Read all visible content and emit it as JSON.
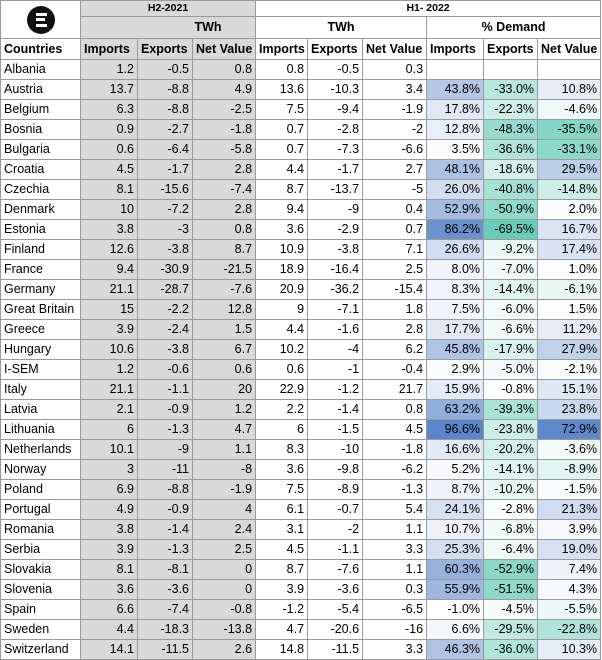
{
  "header": {
    "period_1": "H2-2021",
    "period_2": "H1- 2022",
    "unit_1": "TWh",
    "unit_2": "TWh",
    "unit_3": "% Demand",
    "col_country": "Countries",
    "col_imports": "Imports",
    "col_exports": "Exports",
    "col_net": "Net Value"
  },
  "colors": {
    "gray_fill": "#d9d9d9",
    "blue_heat": "#5b86c9",
    "teal_heat": "#2fb99e"
  },
  "rows": [
    {
      "country": "Albania",
      "h2": [
        "1.2",
        "-0.5",
        "0.8"
      ],
      "h1": [
        "0.8",
        "-0.5",
        "0.3"
      ],
      "pct": [
        "",
        "",
        ""
      ],
      "pv": [
        null,
        null,
        null
      ]
    },
    {
      "country": "Austria",
      "h2": [
        "13.7",
        "-8.8",
        "4.9"
      ],
      "h1": [
        "13.6",
        "-10.3",
        "3.4"
      ],
      "pct": [
        "43.8%",
        "-33.0%",
        "10.8%"
      ],
      "pv": [
        43.8,
        -33.0,
        10.8
      ]
    },
    {
      "country": "Belgium",
      "h2": [
        "6.3",
        "-8.8",
        "-2.5"
      ],
      "h1": [
        "7.5",
        "-9.4",
        "-1.9"
      ],
      "pct": [
        "17.8%",
        "-22.3%",
        "-4.6%"
      ],
      "pv": [
        17.8,
        -22.3,
        -4.6
      ]
    },
    {
      "country": "Bosnia",
      "h2": [
        "0.9",
        "-2.7",
        "-1.8"
      ],
      "h1": [
        "0.7",
        "-2.8",
        "-2"
      ],
      "pct": [
        "12.8%",
        "-48.3%",
        "-35.5%"
      ],
      "pv": [
        12.8,
        -48.3,
        -35.5
      ]
    },
    {
      "country": "Bulgaria",
      "h2": [
        "0.6",
        "-6.4",
        "-5.8"
      ],
      "h1": [
        "0.7",
        "-7.3",
        "-6.6"
      ],
      "pct": [
        "3.5%",
        "-36.6%",
        "-33.1%"
      ],
      "pv": [
        3.5,
        -36.6,
        -33.1
      ]
    },
    {
      "country": "Croatia",
      "h2": [
        "4.5",
        "-1.7",
        "2.8"
      ],
      "h1": [
        "4.4",
        "-1.7",
        "2.7"
      ],
      "pct": [
        "48.1%",
        "-18.6%",
        "29.5%"
      ],
      "pv": [
        48.1,
        -18.6,
        29.5
      ]
    },
    {
      "country": "Czechia",
      "h2": [
        "8.1",
        "-15.6",
        "-7.4"
      ],
      "h1": [
        "8.7",
        "-13.7",
        "-5"
      ],
      "pct": [
        "26.0%",
        "-40.8%",
        "-14.8%"
      ],
      "pv": [
        26.0,
        -40.8,
        -14.8
      ]
    },
    {
      "country": "Denmark",
      "h2": [
        "10",
        "-7.2",
        "2.8"
      ],
      "h1": [
        "9.4",
        "-9",
        "0.4"
      ],
      "pct": [
        "52.9%",
        "-50.9%",
        "2.0%"
      ],
      "pv": [
        52.9,
        -50.9,
        2.0
      ]
    },
    {
      "country": "Estonia",
      "h2": [
        "3.8",
        "-3",
        "0.8"
      ],
      "h1": [
        "3.6",
        "-2.9",
        "0.7"
      ],
      "pct": [
        "86.2%",
        "-69.5%",
        "16.7%"
      ],
      "pv": [
        86.2,
        -69.5,
        16.7
      ]
    },
    {
      "country": "Finland",
      "h2": [
        "12.6",
        "-3.8",
        "8.7"
      ],
      "h1": [
        "10.9",
        "-3.8",
        "7.1"
      ],
      "pct": [
        "26.6%",
        "-9.2%",
        "17.4%"
      ],
      "pv": [
        26.6,
        -9.2,
        17.4
      ]
    },
    {
      "country": "France",
      "h2": [
        "9.4",
        "-30.9",
        "-21.5"
      ],
      "h1": [
        "18.9",
        "-16.4",
        "2.5"
      ],
      "pct": [
        "8.0%",
        "-7.0%",
        "1.0%"
      ],
      "pv": [
        8.0,
        -7.0,
        1.0
      ]
    },
    {
      "country": "Germany",
      "h2": [
        "21.1",
        "-28.7",
        "-7.6"
      ],
      "h1": [
        "20.9",
        "-36.2",
        "-15.4"
      ],
      "pct": [
        "8.3%",
        "-14.4%",
        "-6.1%"
      ],
      "pv": [
        8.3,
        -14.4,
        -6.1
      ]
    },
    {
      "country": "Great Britain",
      "h2": [
        "15",
        "-2.2",
        "12.8"
      ],
      "h1": [
        "9",
        "-7.1",
        "1.8"
      ],
      "pct": [
        "7.5%",
        "-6.0%",
        "1.5%"
      ],
      "pv": [
        7.5,
        -6.0,
        1.5
      ]
    },
    {
      "country": "Greece",
      "h2": [
        "3.9",
        "-2.4",
        "1.5"
      ],
      "h1": [
        "4.4",
        "-1.6",
        "2.8"
      ],
      "pct": [
        "17.7%",
        "-6.6%",
        "11.2%"
      ],
      "pv": [
        17.7,
        -6.6,
        11.2
      ]
    },
    {
      "country": "Hungary",
      "h2": [
        "10.6",
        "-3.8",
        "6.7"
      ],
      "h1": [
        "10.2",
        "-4",
        "6.2"
      ],
      "pct": [
        "45.8%",
        "-17.9%",
        "27.9%"
      ],
      "pv": [
        45.8,
        -17.9,
        27.9
      ]
    },
    {
      "country": "I-SEM",
      "h2": [
        "1.2",
        "-0.6",
        "0.6"
      ],
      "h1": [
        "0.6",
        "-1",
        "-0.4"
      ],
      "pct": [
        "2.9%",
        "-5.0%",
        "-2.1%"
      ],
      "pv": [
        2.9,
        -5.0,
        -2.1
      ]
    },
    {
      "country": "Italy",
      "h2": [
        "21.1",
        "-1.1",
        "20"
      ],
      "h1": [
        "22.9",
        "-1.2",
        "21.7"
      ],
      "pct": [
        "15.9%",
        "-0.8%",
        "15.1%"
      ],
      "pv": [
        15.9,
        -0.8,
        15.1
      ]
    },
    {
      "country": "Latvia",
      "h2": [
        "2.1",
        "-0.9",
        "1.2"
      ],
      "h1": [
        "2.2",
        "-1.4",
        "0.8"
      ],
      "pct": [
        "63.2%",
        "-39.3%",
        "23.8%"
      ],
      "pv": [
        63.2,
        -39.3,
        23.8
      ]
    },
    {
      "country": "Lithuania",
      "h2": [
        "6",
        "-1.3",
        "4.7"
      ],
      "h1": [
        "6",
        "-1.5",
        "4.5"
      ],
      "pct": [
        "96.6%",
        "-23.8%",
        "72.9%"
      ],
      "pv": [
        96.6,
        -23.8,
        72.9
      ]
    },
    {
      "country": "Netherlands",
      "h2": [
        "10.1",
        "-9",
        "1.1"
      ],
      "h1": [
        "8.3",
        "-10",
        "-1.8"
      ],
      "pct": [
        "16.6%",
        "-20.2%",
        "-3.6%"
      ],
      "pv": [
        16.6,
        -20.2,
        -3.6
      ]
    },
    {
      "country": "Norway",
      "h2": [
        "3",
        "-11",
        "-8"
      ],
      "h1": [
        "3.6",
        "-9.8",
        "-6.2"
      ],
      "pct": [
        "5.2%",
        "-14.1%",
        "-8.9%"
      ],
      "pv": [
        5.2,
        -14.1,
        -8.9
      ]
    },
    {
      "country": "Poland",
      "h2": [
        "6.9",
        "-8.8",
        "-1.9"
      ],
      "h1": [
        "7.5",
        "-8.9",
        "-1.3"
      ],
      "pct": [
        "8.7%",
        "-10.2%",
        "-1.5%"
      ],
      "pv": [
        8.7,
        -10.2,
        -1.5
      ]
    },
    {
      "country": "Portugal",
      "h2": [
        "4.9",
        "-0.9",
        "4"
      ],
      "h1": [
        "6.1",
        "-0.7",
        "5.4"
      ],
      "pct": [
        "24.1%",
        "-2.8%",
        "21.3%"
      ],
      "pv": [
        24.1,
        -2.8,
        21.3
      ]
    },
    {
      "country": "Romania",
      "h2": [
        "3.8",
        "-1.4",
        "2.4"
      ],
      "h1": [
        "3.1",
        "-2",
        "1.1"
      ],
      "pct": [
        "10.7%",
        "-6.8%",
        "3.9%"
      ],
      "pv": [
        10.7,
        -6.8,
        3.9
      ]
    },
    {
      "country": "Serbia",
      "h2": [
        "3.9",
        "-1.3",
        "2.5"
      ],
      "h1": [
        "4.5",
        "-1.1",
        "3.3"
      ],
      "pct": [
        "25.3%",
        "-6.4%",
        "19.0%"
      ],
      "pv": [
        25.3,
        -6.4,
        19.0
      ]
    },
    {
      "country": "Slovakia",
      "h2": [
        "8.1",
        "-8.1",
        "0"
      ],
      "h1": [
        "8.7",
        "-7.6",
        "1.1"
      ],
      "pct": [
        "60.3%",
        "-52.9%",
        "7.4%"
      ],
      "pv": [
        60.3,
        -52.9,
        7.4
      ]
    },
    {
      "country": "Slovenia",
      "h2": [
        "3.6",
        "-3.6",
        "0"
      ],
      "h1": [
        "3.9",
        "-3.6",
        "0.3"
      ],
      "pct": [
        "55.9%",
        "-51.5%",
        "4.3%"
      ],
      "pv": [
        55.9,
        -51.5,
        4.3
      ]
    },
    {
      "country": "Spain",
      "h2": [
        "6.6",
        "-7.4",
        "-0.8"
      ],
      "h1": [
        "-1.2",
        "-5.4",
        "-6.5"
      ],
      "pct": [
        "-1.0%",
        "-4.5%",
        "-5.5%"
      ],
      "pv": [
        -1.0,
        -4.5,
        -5.5
      ]
    },
    {
      "country": "Sweden",
      "h2": [
        "4.4",
        "-18.3",
        "-13.8"
      ],
      "h1": [
        "4.7",
        "-20.6",
        "-16"
      ],
      "pct": [
        "6.6%",
        "-29.5%",
        "-22.8%"
      ],
      "pv": [
        6.6,
        -29.5,
        -22.8
      ]
    },
    {
      "country": "Switzerland",
      "h2": [
        "14.1",
        "-11.5",
        "2.6"
      ],
      "h1": [
        "14.8",
        "-11.5",
        "3.3"
      ],
      "pct": [
        "46.3%",
        "-36.0%",
        "10.3%"
      ],
      "pv": [
        46.3,
        -36.0,
        10.3
      ]
    }
  ]
}
